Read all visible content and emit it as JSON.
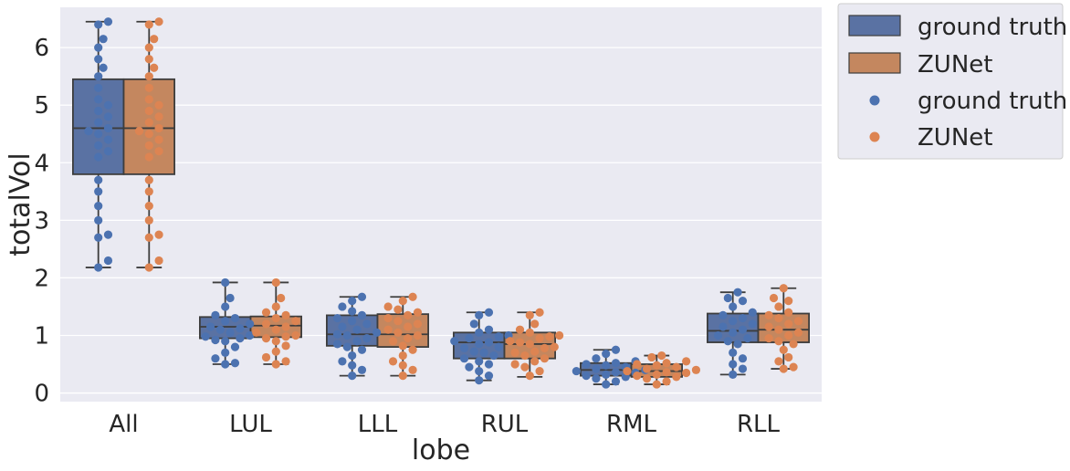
{
  "chart_data": {
    "type": "box+swarm",
    "title": "",
    "xlabel": "lobe",
    "ylabel": "totalVol",
    "ylim": [
      -0.15,
      6.7
    ],
    "yticks": [
      0,
      1,
      2,
      3,
      4,
      5,
      6
    ],
    "categories": [
      "All",
      "LUL",
      "LLL",
      "RUL",
      "RML",
      "RLL"
    ],
    "grid": true,
    "legend_placement": "outside-top-right",
    "legend": {
      "box_entries": [
        "ground truth",
        "ZUNet"
      ],
      "point_entries": [
        "ground truth",
        "ZUNet"
      ]
    },
    "series": [
      {
        "name": "ground truth",
        "box_color": "#5a72a3",
        "point_color": "#4c72b0",
        "boxes": [
          {
            "whisker_low": 2.18,
            "q1": 3.8,
            "median": 4.6,
            "q3": 5.45,
            "whisker_high": 6.45
          },
          {
            "whisker_low": 0.5,
            "q1": 0.95,
            "median": 1.15,
            "q3": 1.32,
            "whisker_high": 1.92
          },
          {
            "whisker_low": 0.3,
            "q1": 0.82,
            "median": 1.02,
            "q3": 1.35,
            "whisker_high": 1.67
          },
          {
            "whisker_low": 0.22,
            "q1": 0.6,
            "median": 0.88,
            "q3": 1.05,
            "whisker_high": 1.4
          },
          {
            "whisker_low": 0.15,
            "q1": 0.3,
            "median": 0.4,
            "q3": 0.52,
            "whisker_high": 0.75
          },
          {
            "whisker_low": 0.32,
            "q1": 0.88,
            "median": 1.08,
            "q3": 1.38,
            "whisker_high": 1.75
          }
        ],
        "points": [
          [
            6.45,
            6.4,
            6.15,
            6.0,
            5.8,
            5.65,
            5.5,
            5.3,
            5.1,
            5.0,
            4.9,
            4.8,
            4.7,
            4.6,
            4.55,
            4.5,
            4.4,
            4.3,
            4.2,
            4.1,
            3.7,
            3.5,
            3.25,
            3.0,
            2.75,
            2.7,
            2.3,
            2.18
          ],
          [
            1.92,
            1.65,
            1.5,
            1.35,
            1.3,
            1.25,
            1.2,
            1.15,
            1.12,
            1.1,
            1.05,
            1.0,
            0.98,
            0.95,
            0.92,
            0.9,
            0.8,
            0.7,
            0.6,
            0.52,
            0.5
          ],
          [
            1.67,
            1.6,
            1.5,
            1.42,
            1.35,
            1.3,
            1.25,
            1.2,
            1.15,
            1.1,
            1.05,
            1.02,
            1.0,
            0.95,
            0.9,
            0.85,
            0.8,
            0.75,
            0.65,
            0.55,
            0.48,
            0.4,
            0.3
          ],
          [
            1.4,
            1.35,
            1.2,
            1.1,
            1.05,
            1.0,
            0.98,
            0.95,
            0.9,
            0.88,
            0.85,
            0.8,
            0.78,
            0.72,
            0.7,
            0.65,
            0.6,
            0.55,
            0.5,
            0.45,
            0.38,
            0.3,
            0.22
          ],
          [
            0.75,
            0.68,
            0.6,
            0.55,
            0.52,
            0.5,
            0.48,
            0.45,
            0.42,
            0.4,
            0.38,
            0.36,
            0.35,
            0.32,
            0.3,
            0.28,
            0.25,
            0.2,
            0.15
          ],
          [
            1.75,
            1.65,
            1.6,
            1.5,
            1.4,
            1.35,
            1.3,
            1.25,
            1.2,
            1.15,
            1.1,
            1.05,
            1.0,
            0.95,
            0.9,
            0.85,
            0.7,
            0.6,
            0.5,
            0.42,
            0.32
          ]
        ]
      },
      {
        "name": "ZUNet",
        "box_color": "#c4875f",
        "point_color": "#dd8452",
        "boxes": [
          {
            "whisker_low": 2.18,
            "q1": 3.8,
            "median": 4.6,
            "q3": 5.45,
            "whisker_high": 6.45
          },
          {
            "whisker_low": 0.5,
            "q1": 0.97,
            "median": 1.17,
            "q3": 1.33,
            "whisker_high": 1.92
          },
          {
            "whisker_low": 0.3,
            "q1": 0.8,
            "median": 1.02,
            "q3": 1.37,
            "whisker_high": 1.67
          },
          {
            "whisker_low": 0.28,
            "q1": 0.6,
            "median": 0.85,
            "q3": 1.05,
            "whisker_high": 1.4
          },
          {
            "whisker_low": 0.15,
            "q1": 0.28,
            "median": 0.38,
            "q3": 0.5,
            "whisker_high": 0.65
          },
          {
            "whisker_low": 0.42,
            "q1": 0.88,
            "median": 1.1,
            "q3": 1.38,
            "whisker_high": 1.82
          }
        ],
        "points": [
          [
            6.45,
            6.4,
            6.15,
            6.0,
            5.8,
            5.65,
            5.5,
            5.3,
            5.1,
            5.0,
            4.9,
            4.8,
            4.7,
            4.6,
            4.55,
            4.5,
            4.4,
            4.3,
            4.2,
            4.1,
            3.7,
            3.5,
            3.25,
            3.0,
            2.75,
            2.7,
            2.3,
            2.18
          ],
          [
            1.92,
            1.65,
            1.5,
            1.4,
            1.35,
            1.3,
            1.25,
            1.2,
            1.15,
            1.1,
            1.05,
            1.0,
            0.98,
            0.95,
            0.9,
            0.82,
            0.72,
            0.62,
            0.55,
            0.5
          ],
          [
            1.67,
            1.6,
            1.5,
            1.45,
            1.4,
            1.35,
            1.3,
            1.25,
            1.2,
            1.15,
            1.1,
            1.05,
            1.0,
            0.95,
            0.9,
            0.82,
            0.75,
            0.65,
            0.55,
            0.48,
            0.4,
            0.3
          ],
          [
            1.4,
            1.35,
            1.2,
            1.1,
            1.05,
            1.0,
            0.98,
            0.95,
            0.9,
            0.88,
            0.85,
            0.8,
            0.78,
            0.72,
            0.7,
            0.65,
            0.6,
            0.55,
            0.5,
            0.45,
            0.38,
            0.3
          ],
          [
            0.65,
            0.62,
            0.55,
            0.52,
            0.5,
            0.48,
            0.45,
            0.42,
            0.4,
            0.38,
            0.36,
            0.35,
            0.32,
            0.3,
            0.28,
            0.25,
            0.2,
            0.15
          ],
          [
            1.82,
            1.65,
            1.6,
            1.5,
            1.4,
            1.35,
            1.3,
            1.25,
            1.2,
            1.15,
            1.1,
            1.05,
            1.0,
            0.95,
            0.9,
            0.85,
            0.75,
            0.62,
            0.55,
            0.45,
            0.42
          ]
        ]
      }
    ]
  }
}
